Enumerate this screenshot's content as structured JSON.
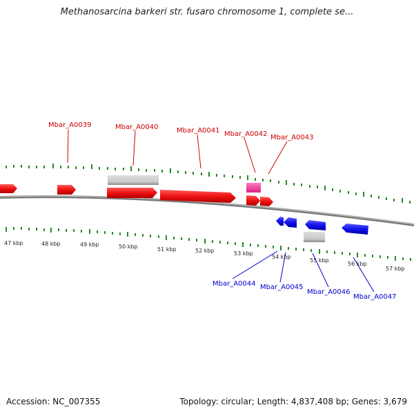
{
  "title": "Methanosarcina barkeri str. fusaro chromosome 1, complete se...",
  "footer": {
    "accession": "Accession: NC_007355",
    "summary": "Topology: circular; Length: 4,837,408 bp; Genes: 3,679"
  },
  "colors": {
    "forward_gene": "#ee1111",
    "reverse_gene": "#1111ee",
    "rna_gene": "#ee3399",
    "pseudo": "#c8c8c8",
    "backbone": "#888888",
    "tick": "#228822",
    "forward_label": "#cc0000",
    "reverse_label": "#0000cc"
  },
  "kbp_labels": [
    "47 kbp",
    "48 kbp",
    "49 kbp",
    "50 kbp",
    "51 kbp",
    "52 kbp",
    "53 kbp",
    "54 kbp",
    "55 kbp",
    "56 kbp",
    "57 kbp"
  ],
  "forward_labels": [
    "Mbar_A0039",
    "Mbar_A0040",
    "Mbar_A0041",
    "Mbar_A0042",
    "Mbar_A0043"
  ],
  "reverse_labels": [
    "Mbar_A0044",
    "Mbar_A0045",
    "Mbar_A0046",
    "Mbar_A0047"
  ]
}
